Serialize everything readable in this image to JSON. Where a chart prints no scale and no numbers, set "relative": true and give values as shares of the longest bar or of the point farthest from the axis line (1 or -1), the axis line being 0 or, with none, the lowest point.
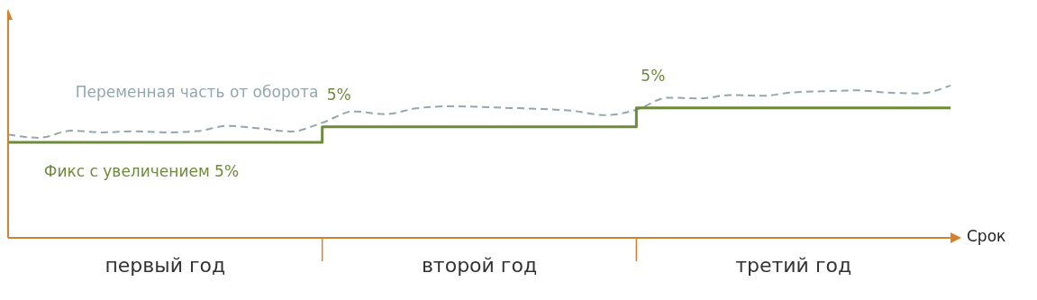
{
  "chart_data": {
    "type": "line",
    "relative": true,
    "xlabel": "Срок",
    "categories": [
      null,
      null,
      null,
      null,
      null,
      "первый год",
      null,
      null,
      null,
      null,
      null,
      null,
      null,
      null,
      null,
      "второй год",
      null,
      null,
      null,
      null,
      null,
      null,
      null,
      null,
      null,
      "третий год",
      null,
      null,
      null,
      null,
      null
    ],
    "series": [
      {
        "name": "Переменная часть от оборота",
        "color": "#93a7ad",
        "line_style": "dashed",
        "values": [
          0.678,
          0.657,
          0.703,
          0.692,
          0.7,
          0.692,
          0.7,
          0.735,
          0.718,
          0.698,
          0.755,
          0.83,
          0.812,
          0.85,
          0.863,
          0.86,
          0.852,
          0.846,
          0.833,
          0.805,
          0.84,
          0.92,
          0.915,
          0.937,
          0.932,
          0.955,
          0.962,
          0.968,
          0.953,
          0.948,
          1
        ]
      },
      {
        "name": "Фикс с увеличением 5%",
        "type": "step",
        "color": "#6e8b3d",
        "line_style": "solid",
        "values": [
          0.627,
          0.627,
          0.627,
          0.627,
          0.627,
          0.627,
          0.627,
          0.627,
          0.627,
          0.627,
          0.729,
          0.729,
          0.729,
          0.729,
          0.729,
          0.729,
          0.729,
          0.729,
          0.729,
          0.729,
          0.853,
          0.853,
          0.853,
          0.853,
          0.853,
          0.853,
          0.853,
          0.853,
          0.853,
          0.853,
          0.853
        ]
      }
    ],
    "annotations": [
      "5%",
      "5%"
    ],
    "grid": false,
    "legend": false,
    "marker": "none"
  }
}
